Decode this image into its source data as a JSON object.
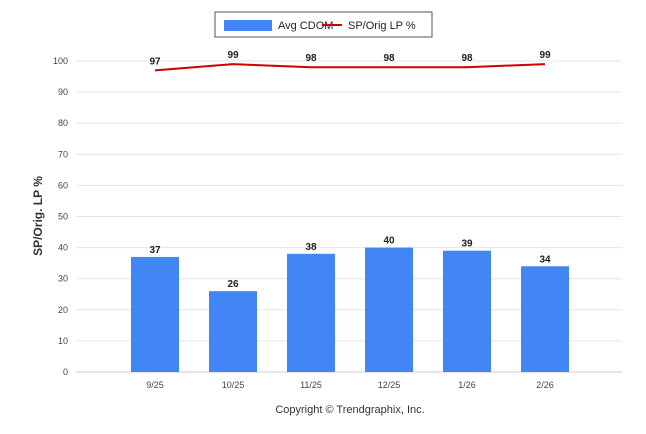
{
  "chart_data": {
    "type": "bar",
    "categories": [
      "9/25",
      "10/25",
      "11/25",
      "12/25",
      "1/26",
      "2/26"
    ],
    "series": [
      {
        "name": "Avg CDOM",
        "type": "bar",
        "color": "#4285f4",
        "values": [
          37,
          26,
          38,
          40,
          39,
          34
        ]
      },
      {
        "name": "SP/Orig LP %",
        "type": "line",
        "color": "#cc0000",
        "values": [
          97,
          99,
          98,
          98,
          98,
          99
        ]
      }
    ],
    "ylabel": "SP/Orig. LP %",
    "xlabel": "",
    "ylim": [
      0,
      100
    ],
    "yticks": [
      0,
      10,
      20,
      30,
      40,
      50,
      60,
      70,
      80,
      90,
      100
    ],
    "grid": true,
    "legend_position": "top-center"
  },
  "footer_text": "Copyright © Trendgraphix, Inc."
}
